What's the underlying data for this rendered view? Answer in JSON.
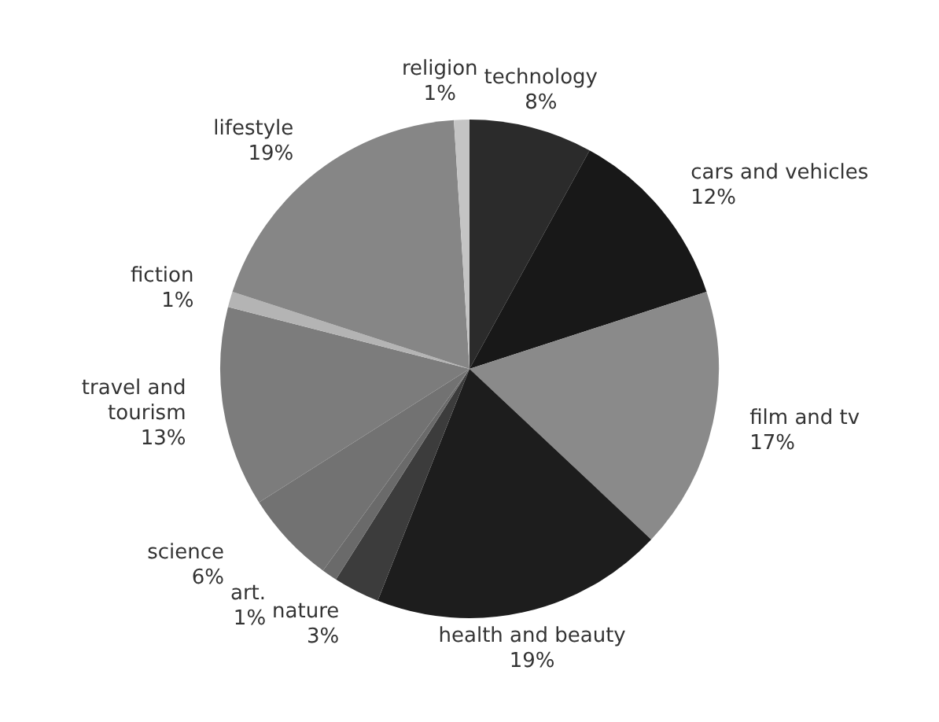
{
  "chart_data": {
    "type": "pie",
    "categories": [
      "technology",
      "cars and vehicles",
      "film and tv",
      "health and beauty",
      "nature",
      "art.",
      "science",
      "travel and tourism",
      "fiction",
      "lifestyle",
      "religion"
    ],
    "values": [
      8,
      12,
      17,
      19,
      3,
      1,
      6,
      13,
      1,
      19,
      1
    ],
    "value_labels": [
      "8%",
      "12%",
      "17%",
      "19%",
      "3%",
      "1%",
      "6%",
      "13%",
      "1%",
      "19%",
      "1%"
    ],
    "colors": [
      "#2b2b2b",
      "#181818",
      "#8a8a8a",
      "#1d1d1d",
      "#3c3c3c",
      "#6a6a6a",
      "#727272",
      "#7c7c7c",
      "#b4b4b4",
      "#868686",
      "#c4c4c4"
    ],
    "legend": false
  }
}
